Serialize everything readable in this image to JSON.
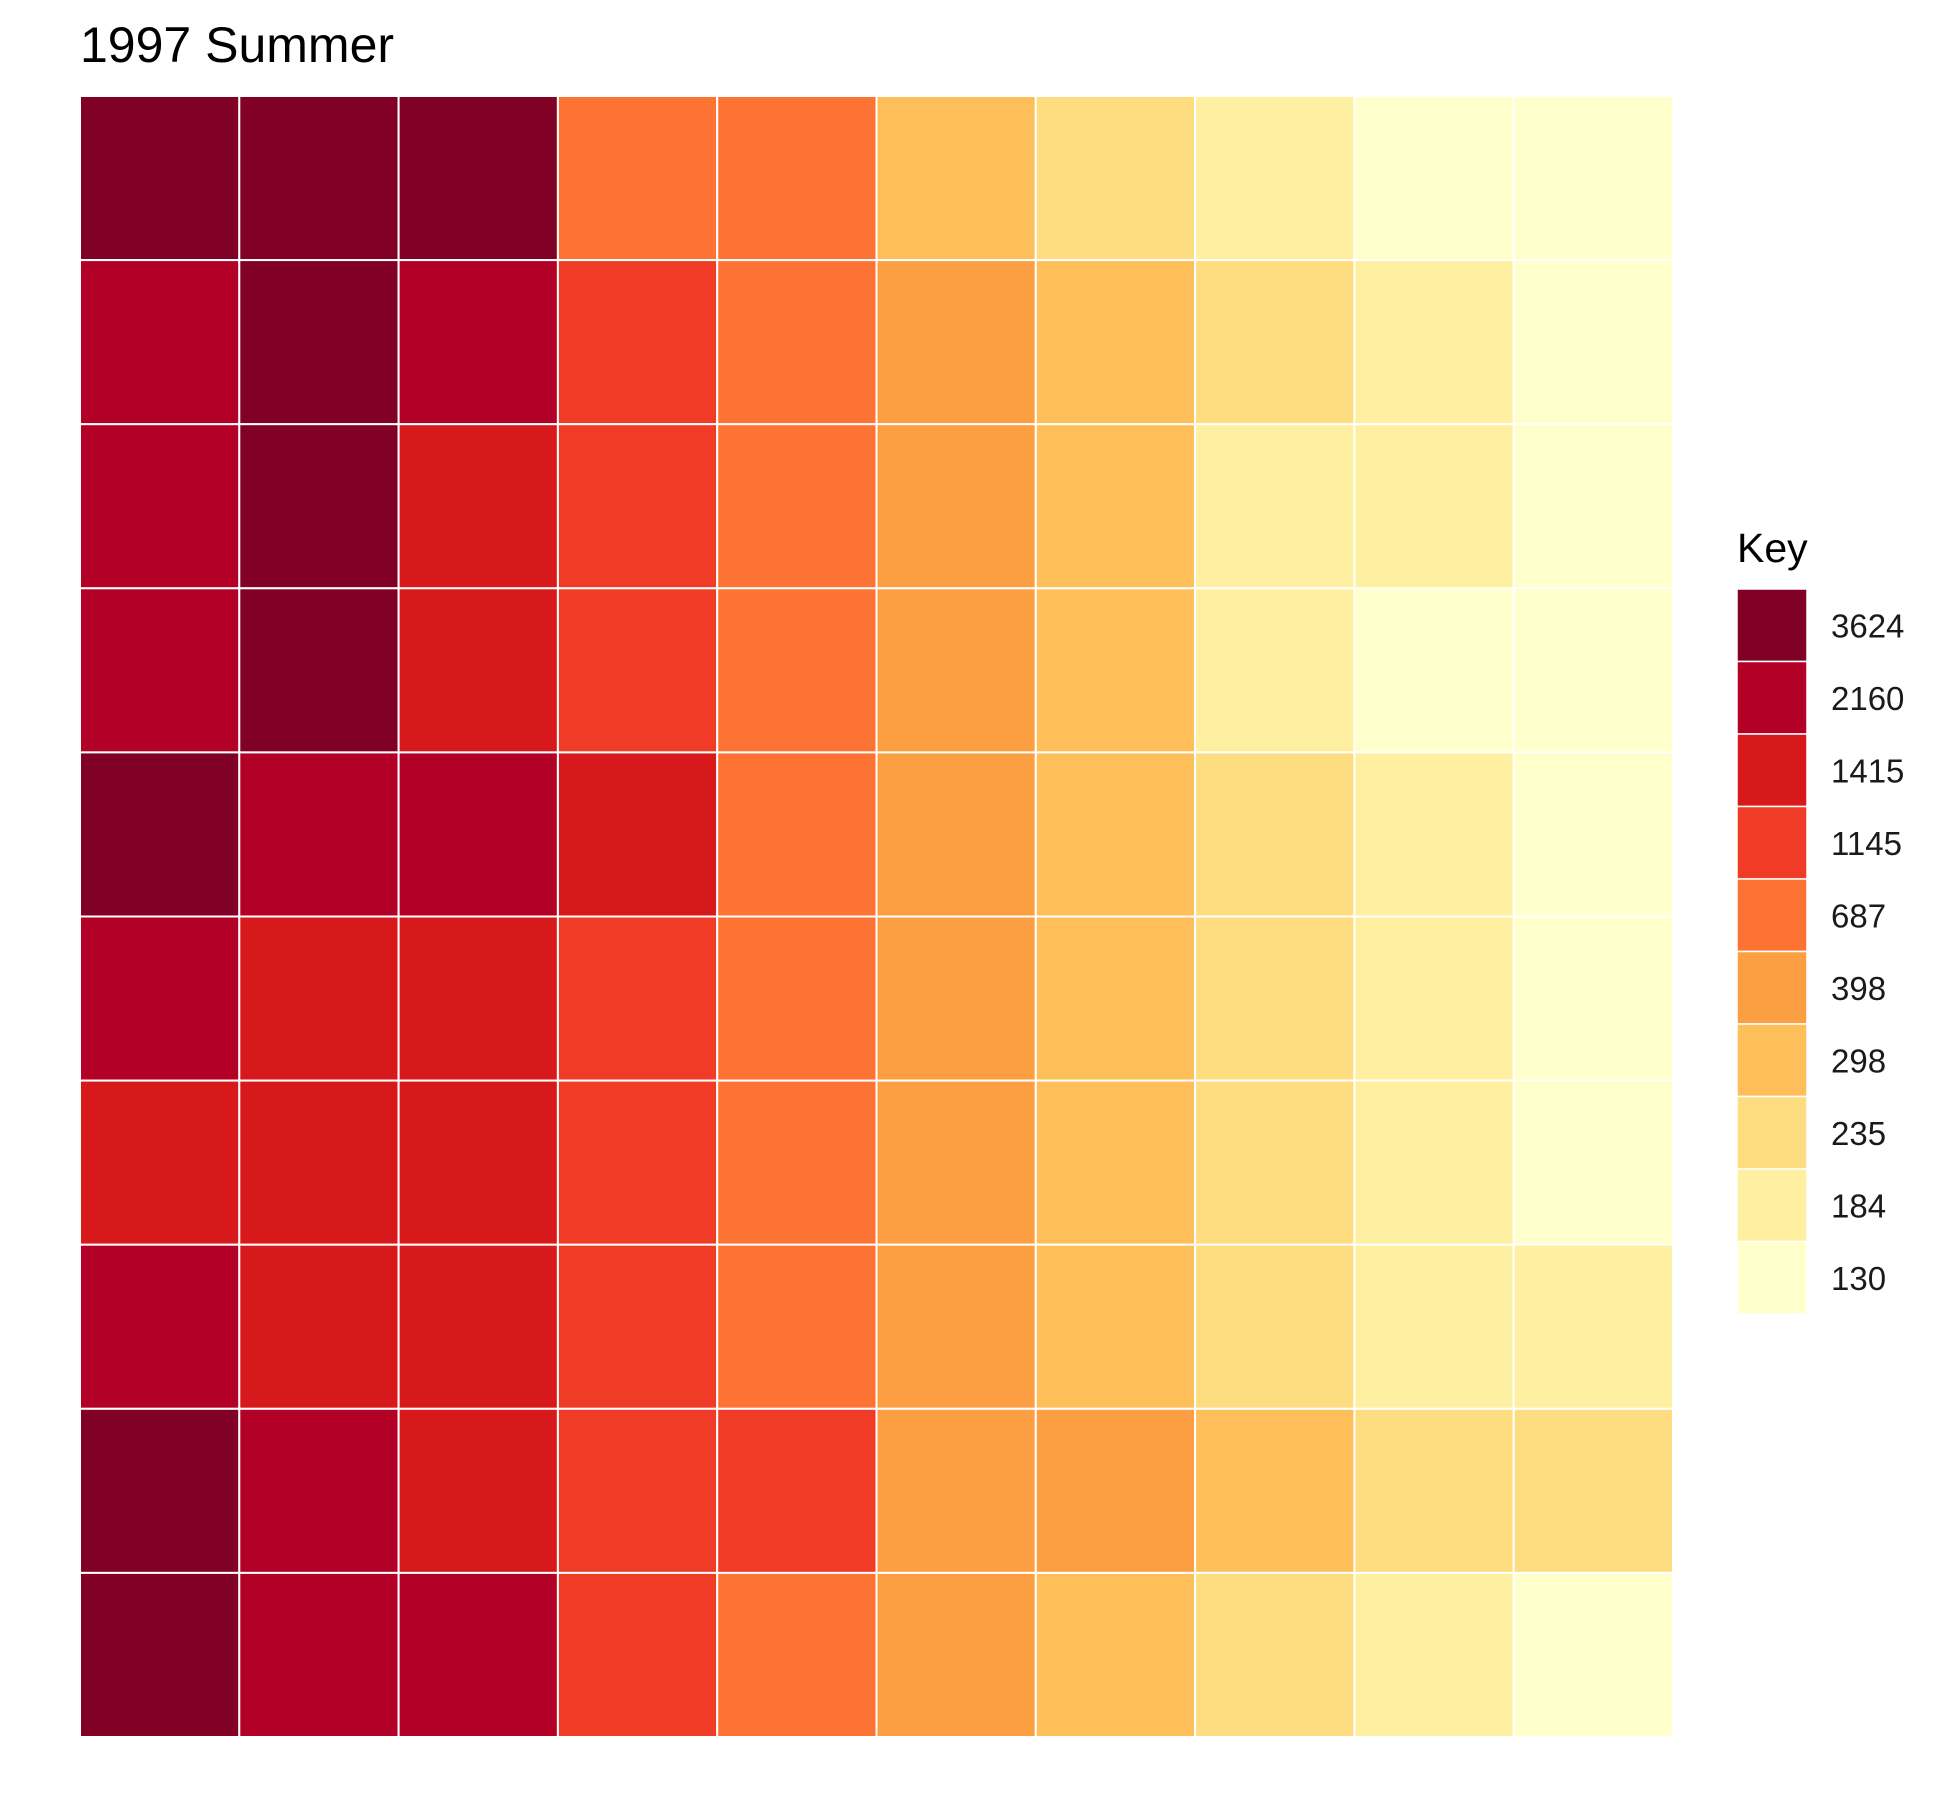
{
  "chart_data": {
    "type": "heatmap",
    "title": "1997 Summer",
    "xlabel": "",
    "ylabel": "",
    "grid": false,
    "legend": {
      "title": "Key",
      "placement": "right",
      "levels": [
        {
          "label": "3624",
          "color": "#800026"
        },
        {
          "label": "2160",
          "color": "#b30026"
        },
        {
          "label": "1415",
          "color": "#d7191c"
        },
        {
          "label": "1145",
          "color": "#f03b26"
        },
        {
          "label": "687",
          "color": "#fd7334"
        },
        {
          "label": "398",
          "color": "#fc9f42"
        },
        {
          "label": "298",
          "color": "#febf5a"
        },
        {
          "label": "235",
          "color": "#fedd80"
        },
        {
          "label": "184",
          "color": "#ffefa0"
        },
        {
          "label": "130",
          "color": "#ffffcc"
        }
      ]
    },
    "rows": 10,
    "cols": 10,
    "cells": [
      [
        0,
        0,
        0,
        4,
        4,
        6,
        7,
        8,
        9,
        9
      ],
      [
        1,
        0,
        1,
        3,
        4,
        5,
        6,
        7,
        8,
        9
      ],
      [
        1,
        0,
        2,
        3,
        4,
        5,
        6,
        8,
        8,
        9
      ],
      [
        1,
        0,
        2,
        3,
        4,
        5,
        6,
        8,
        9,
        9
      ],
      [
        0,
        1,
        1,
        2,
        4,
        5,
        6,
        7,
        8,
        9
      ],
      [
        1,
        2,
        2,
        3,
        4,
        5,
        6,
        7,
        8,
        9
      ],
      [
        2,
        2,
        2,
        3,
        4,
        5,
        6,
        7,
        8,
        9
      ],
      [
        1,
        2,
        2,
        3,
        4,
        5,
        6,
        7,
        8,
        8
      ],
      [
        0,
        1,
        2,
        3,
        3,
        5,
        5,
        6,
        7,
        7
      ],
      [
        0,
        1,
        1,
        3,
        4,
        5,
        6,
        7,
        8,
        9
      ]
    ]
  }
}
